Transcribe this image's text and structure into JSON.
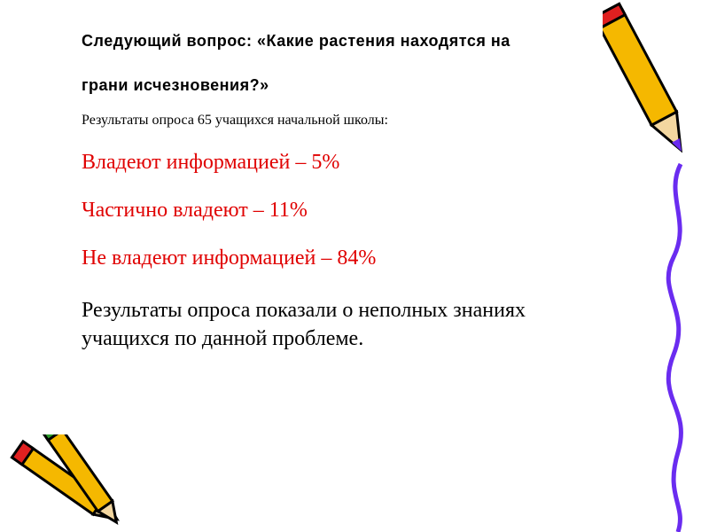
{
  "heading": {
    "line1": "Следующий вопрос: «Какие растения находятся на",
    "line2": "грани исчезновения?»"
  },
  "subtitle": "Результаты опроса 65 учащихся начальной школы:",
  "results": [
    "Владеют информацией – 5%",
    "Частично владеют – 11%",
    "Не владеют информацией – 84%"
  ],
  "conclusion": "Результаты опроса показали о неполных знаниях учащихся по данной проблеме.",
  "colors": {
    "highlight": "#e00000",
    "pencil": "#f5b800",
    "line": "#6a2cf0"
  }
}
